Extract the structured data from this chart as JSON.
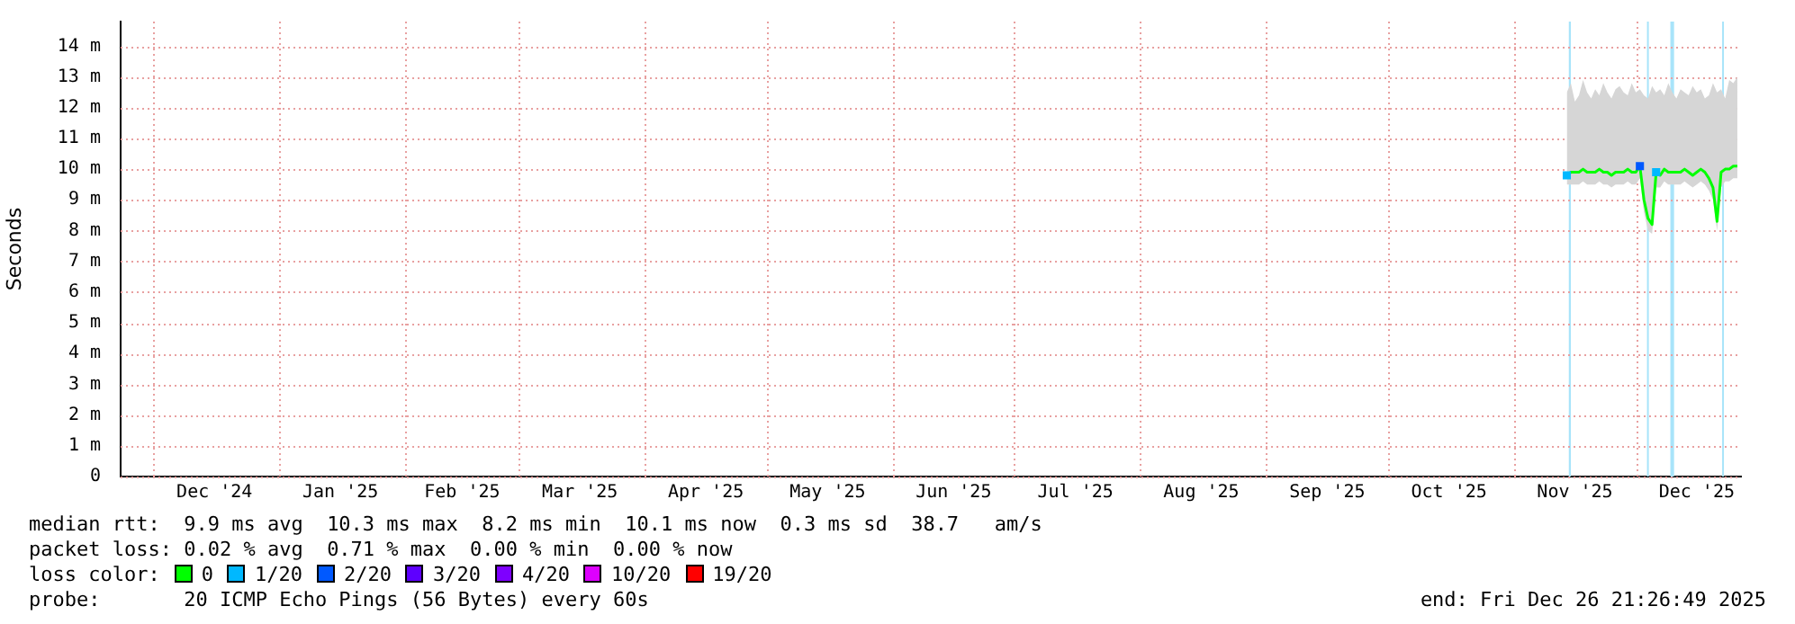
{
  "chart_data": {
    "type": "line",
    "ylabel": "Seconds",
    "legend_title": "loss color:",
    "legend": "bottom left",
    "grid": true,
    "line_style": "solid",
    "xlim": [
      "2024-11-22T21:26",
      "2025-12-26T21:26"
    ],
    "xticks": [
      {
        "value": "2024-12-01",
        "label": null
      },
      {
        "value": "2024-12-16",
        "label": "Dec '24"
      },
      {
        "value": "2025-01-01",
        "label": null
      },
      {
        "value": "2025-01-16",
        "label": "Jan '25"
      },
      {
        "value": "2025-02-01",
        "label": null
      },
      {
        "value": "2025-02-15",
        "label": "Feb '25"
      },
      {
        "value": "2025-03-01",
        "label": null
      },
      {
        "value": "2025-03-16",
        "label": "Mar '25"
      },
      {
        "value": "2025-04-01",
        "label": null
      },
      {
        "value": "2025-04-16",
        "label": "Apr '25"
      },
      {
        "value": "2025-05-01",
        "label": null
      },
      {
        "value": "2025-05-16",
        "label": "May '25"
      },
      {
        "value": "2025-06-01",
        "label": null
      },
      {
        "value": "2025-06-16",
        "label": "Jun '25"
      },
      {
        "value": "2025-07-01",
        "label": null
      },
      {
        "value": "2025-07-16",
        "label": "Jul '25"
      },
      {
        "value": "2025-08-01",
        "label": null
      },
      {
        "value": "2025-08-16",
        "label": "Aug '25"
      },
      {
        "value": "2025-09-01",
        "label": null
      },
      {
        "value": "2025-09-16",
        "label": "Sep '25"
      },
      {
        "value": "2025-10-01",
        "label": null
      },
      {
        "value": "2025-10-16",
        "label": "Oct '25"
      },
      {
        "value": "2025-11-01",
        "label": null
      },
      {
        "value": "2025-11-16",
        "label": "Nov '25"
      },
      {
        "value": "2025-12-01",
        "label": null
      },
      {
        "value": "2025-12-16",
        "label": "Dec '25"
      }
    ],
    "ylim": [
      0,
      14.8
    ],
    "yticks": [
      0,
      {
        "value": 1,
        "label": "1 m"
      },
      {
        "value": 2,
        "label": "2 m"
      },
      {
        "value": 3,
        "label": "3 m"
      },
      {
        "value": 4,
        "label": "4 m"
      },
      {
        "value": 5,
        "label": "5 m"
      },
      {
        "value": 6,
        "label": "6 m"
      },
      {
        "value": 7,
        "label": "7 m"
      },
      {
        "value": 8,
        "label": "8 m"
      },
      {
        "value": 9,
        "label": "9 m"
      },
      {
        "value": 10,
        "label": "10 m"
      },
      {
        "value": 11,
        "label": "11 m"
      },
      {
        "value": 12,
        "label": "12 m"
      },
      {
        "value": 13,
        "label": "13 m"
      },
      {
        "value": 14,
        "label": "14 m"
      }
    ],
    "x": [
      "2025-11-14",
      "2025-11-15",
      "2025-11-16",
      "2025-11-17",
      "2025-11-18",
      "2025-11-19",
      "2025-11-20",
      "2025-11-21",
      "2025-11-22",
      "2025-11-23",
      "2025-11-24",
      "2025-11-25",
      "2025-11-26",
      "2025-11-27",
      "2025-11-28",
      "2025-11-29",
      "2025-11-30",
      "2025-12-01",
      "2025-12-02",
      "2025-12-03",
      "2025-12-04",
      "2025-12-05",
      "2025-12-06",
      "2025-12-07",
      "2025-12-08",
      "2025-12-09",
      "2025-12-10",
      "2025-12-11",
      "2025-12-12",
      "2025-12-13",
      "2025-12-14",
      "2025-12-15",
      "2025-12-16",
      "2025-12-17",
      "2025-12-18",
      "2025-12-19",
      "2025-12-20",
      "2025-12-21",
      "2025-12-22",
      "2025-12-23",
      "2025-12-24",
      "2025-12-25",
      "2025-12-26"
    ],
    "series": [
      {
        "type": "area",
        "color": "#d6d6d6",
        "values": [
          null,
          null,
          null,
          null,
          null,
          null,
          null,
          null,
          null,
          null,
          null,
          null,
          null,
          null,
          null,
          null,
          null,
          null,
          null,
          null,
          null,
          null,
          null,
          null,
          null,
          null,
          null,
          null,
          null,
          null,
          null,
          null,
          null,
          null,
          null,
          null,
          null,
          null,
          null,
          null,
          null,
          null,
          null
        ],
        "lower": [
          9.5,
          9.5,
          9.5,
          9.5,
          9.6,
          9.5,
          9.5,
          9.5,
          9.6,
          9.5,
          9.5,
          9.4,
          9.5,
          9.5,
          9.5,
          9.6,
          9.5,
          9.5,
          9.7,
          8.6,
          8.0,
          7.9,
          9.4,
          9.4,
          9.6,
          9.5,
          9.5,
          9.5,
          9.5,
          9.6,
          9.5,
          9.4,
          9.5,
          9.6,
          9.5,
          9.3,
          9.0,
          8.0,
          9.4,
          9.6,
          9.6,
          9.7,
          9.7
        ],
        "upper": [
          12.5,
          12.8,
          12.2,
          12.4,
          12.9,
          12.5,
          12.3,
          12.6,
          12.4,
          12.8,
          12.5,
          12.3,
          12.6,
          12.7,
          12.5,
          12.4,
          12.8,
          12.5,
          12.6,
          12.4,
          12.3,
          12.7,
          12.5,
          12.6,
          12.4,
          12.8,
          12.5,
          12.3,
          12.6,
          12.5,
          12.4,
          12.7,
          12.5,
          12.6,
          12.3,
          12.4,
          12.8,
          12.5,
          12.6,
          12.3,
          12.9,
          12.8,
          13.0
        ]
      },
      {
        "name": "0",
        "color": "#00ff00",
        "values": [
          9.8,
          9.9,
          9.9,
          9.9,
          10.0,
          9.9,
          9.9,
          9.9,
          10.0,
          9.9,
          9.9,
          9.8,
          9.9,
          9.9,
          9.9,
          10.0,
          9.9,
          9.9,
          10.1,
          9.0,
          8.4,
          8.2,
          9.9,
          9.8,
          10.0,
          9.9,
          9.9,
          9.9,
          9.9,
          10.0,
          9.9,
          9.8,
          9.9,
          10.0,
          9.9,
          9.7,
          9.4,
          8.3,
          9.9,
          10.0,
          10.0,
          10.1,
          10.1
        ]
      },
      {
        "name": "1/20",
        "type": "scatter",
        "marker": "square",
        "color": "#00b8ff",
        "x": [
          "2025-11-14",
          "2025-12-06"
        ],
        "values": [
          9.8,
          9.9
        ]
      },
      {
        "name": "2/20",
        "type": "scatter",
        "marker": "square",
        "color": "#0059ff",
        "x": [
          "2025-12-02"
        ],
        "values": [
          10.1
        ]
      },
      {
        "name": "3/20",
        "type": "scatter",
        "marker": "square",
        "color": "#5e00ff",
        "values": [
          null,
          null,
          null,
          null,
          null,
          null,
          null,
          null,
          null,
          null,
          null,
          null,
          null,
          null,
          null,
          null,
          null,
          null,
          null,
          null,
          null,
          null,
          null,
          null,
          null,
          null,
          null,
          null,
          null,
          null,
          null,
          null,
          null,
          null,
          null,
          null,
          null,
          null,
          null,
          null,
          null,
          null,
          null
        ]
      },
      {
        "name": "4/20",
        "type": "scatter",
        "marker": "square",
        "color": "#7e00ff",
        "values": [
          null,
          null,
          null,
          null,
          null,
          null,
          null,
          null,
          null,
          null,
          null,
          null,
          null,
          null,
          null,
          null,
          null,
          null,
          null,
          null,
          null,
          null,
          null,
          null,
          null,
          null,
          null,
          null,
          null,
          null,
          null,
          null,
          null,
          null,
          null,
          null,
          null,
          null,
          null,
          null,
          null,
          null,
          null
        ]
      },
      {
        "name": "10/20",
        "type": "scatter",
        "marker": "square",
        "color": "#dd00ff",
        "values": [
          null,
          null,
          null,
          null,
          null,
          null,
          null,
          null,
          null,
          null,
          null,
          null,
          null,
          null,
          null,
          null,
          null,
          null,
          null,
          null,
          null,
          null,
          null,
          null,
          null,
          null,
          null,
          null,
          null,
          null,
          null,
          null,
          null,
          null,
          null,
          null,
          null,
          null,
          null,
          null,
          null,
          null,
          null
        ]
      },
      {
        "name": "19/20",
        "type": "scatter",
        "marker": "square",
        "color": "#ff0000",
        "values": [
          null,
          null,
          null,
          null,
          null,
          null,
          null,
          null,
          null,
          null,
          null,
          null,
          null,
          null,
          null,
          null,
          null,
          null,
          null,
          null,
          null,
          null,
          null,
          null,
          null,
          null,
          null,
          null,
          null,
          null,
          null,
          null,
          null,
          null,
          null,
          null,
          null,
          null,
          null,
          null,
          null,
          null,
          null
        ]
      }
    ],
    "bands": [
      {
        "axis": "x",
        "from": "2025-11-14T12:00",
        "to": "2025-11-15T00:00",
        "color": "#a8e4fa"
      },
      {
        "axis": "x",
        "from": "2025-12-03T18:00",
        "to": "2025-12-04T04:00",
        "color": "#a8e4fa"
      },
      {
        "axis": "x",
        "from": "2025-12-09T12:00",
        "to": "2025-12-10T10:00",
        "color": "#a8e4fa"
      },
      {
        "axis": "x",
        "from": "2025-12-22T06:00",
        "to": "2025-12-22T16:00",
        "color": "#a8e4fa"
      }
    ],
    "annotations": [
      "median rtt:  9.9 ms avg  10.3 ms max  8.2 ms min  10.1 ms now  0.3 ms sd  38.7   am/s",
      "packet loss: 0.02 % avg  0.71 % max  0.00 % min  0.00 % now",
      "probe:       20 ICMP Echo Pings (56 Bytes) every 60s",
      "end: Fri Dec 26 21:26:49 2025"
    ]
  }
}
